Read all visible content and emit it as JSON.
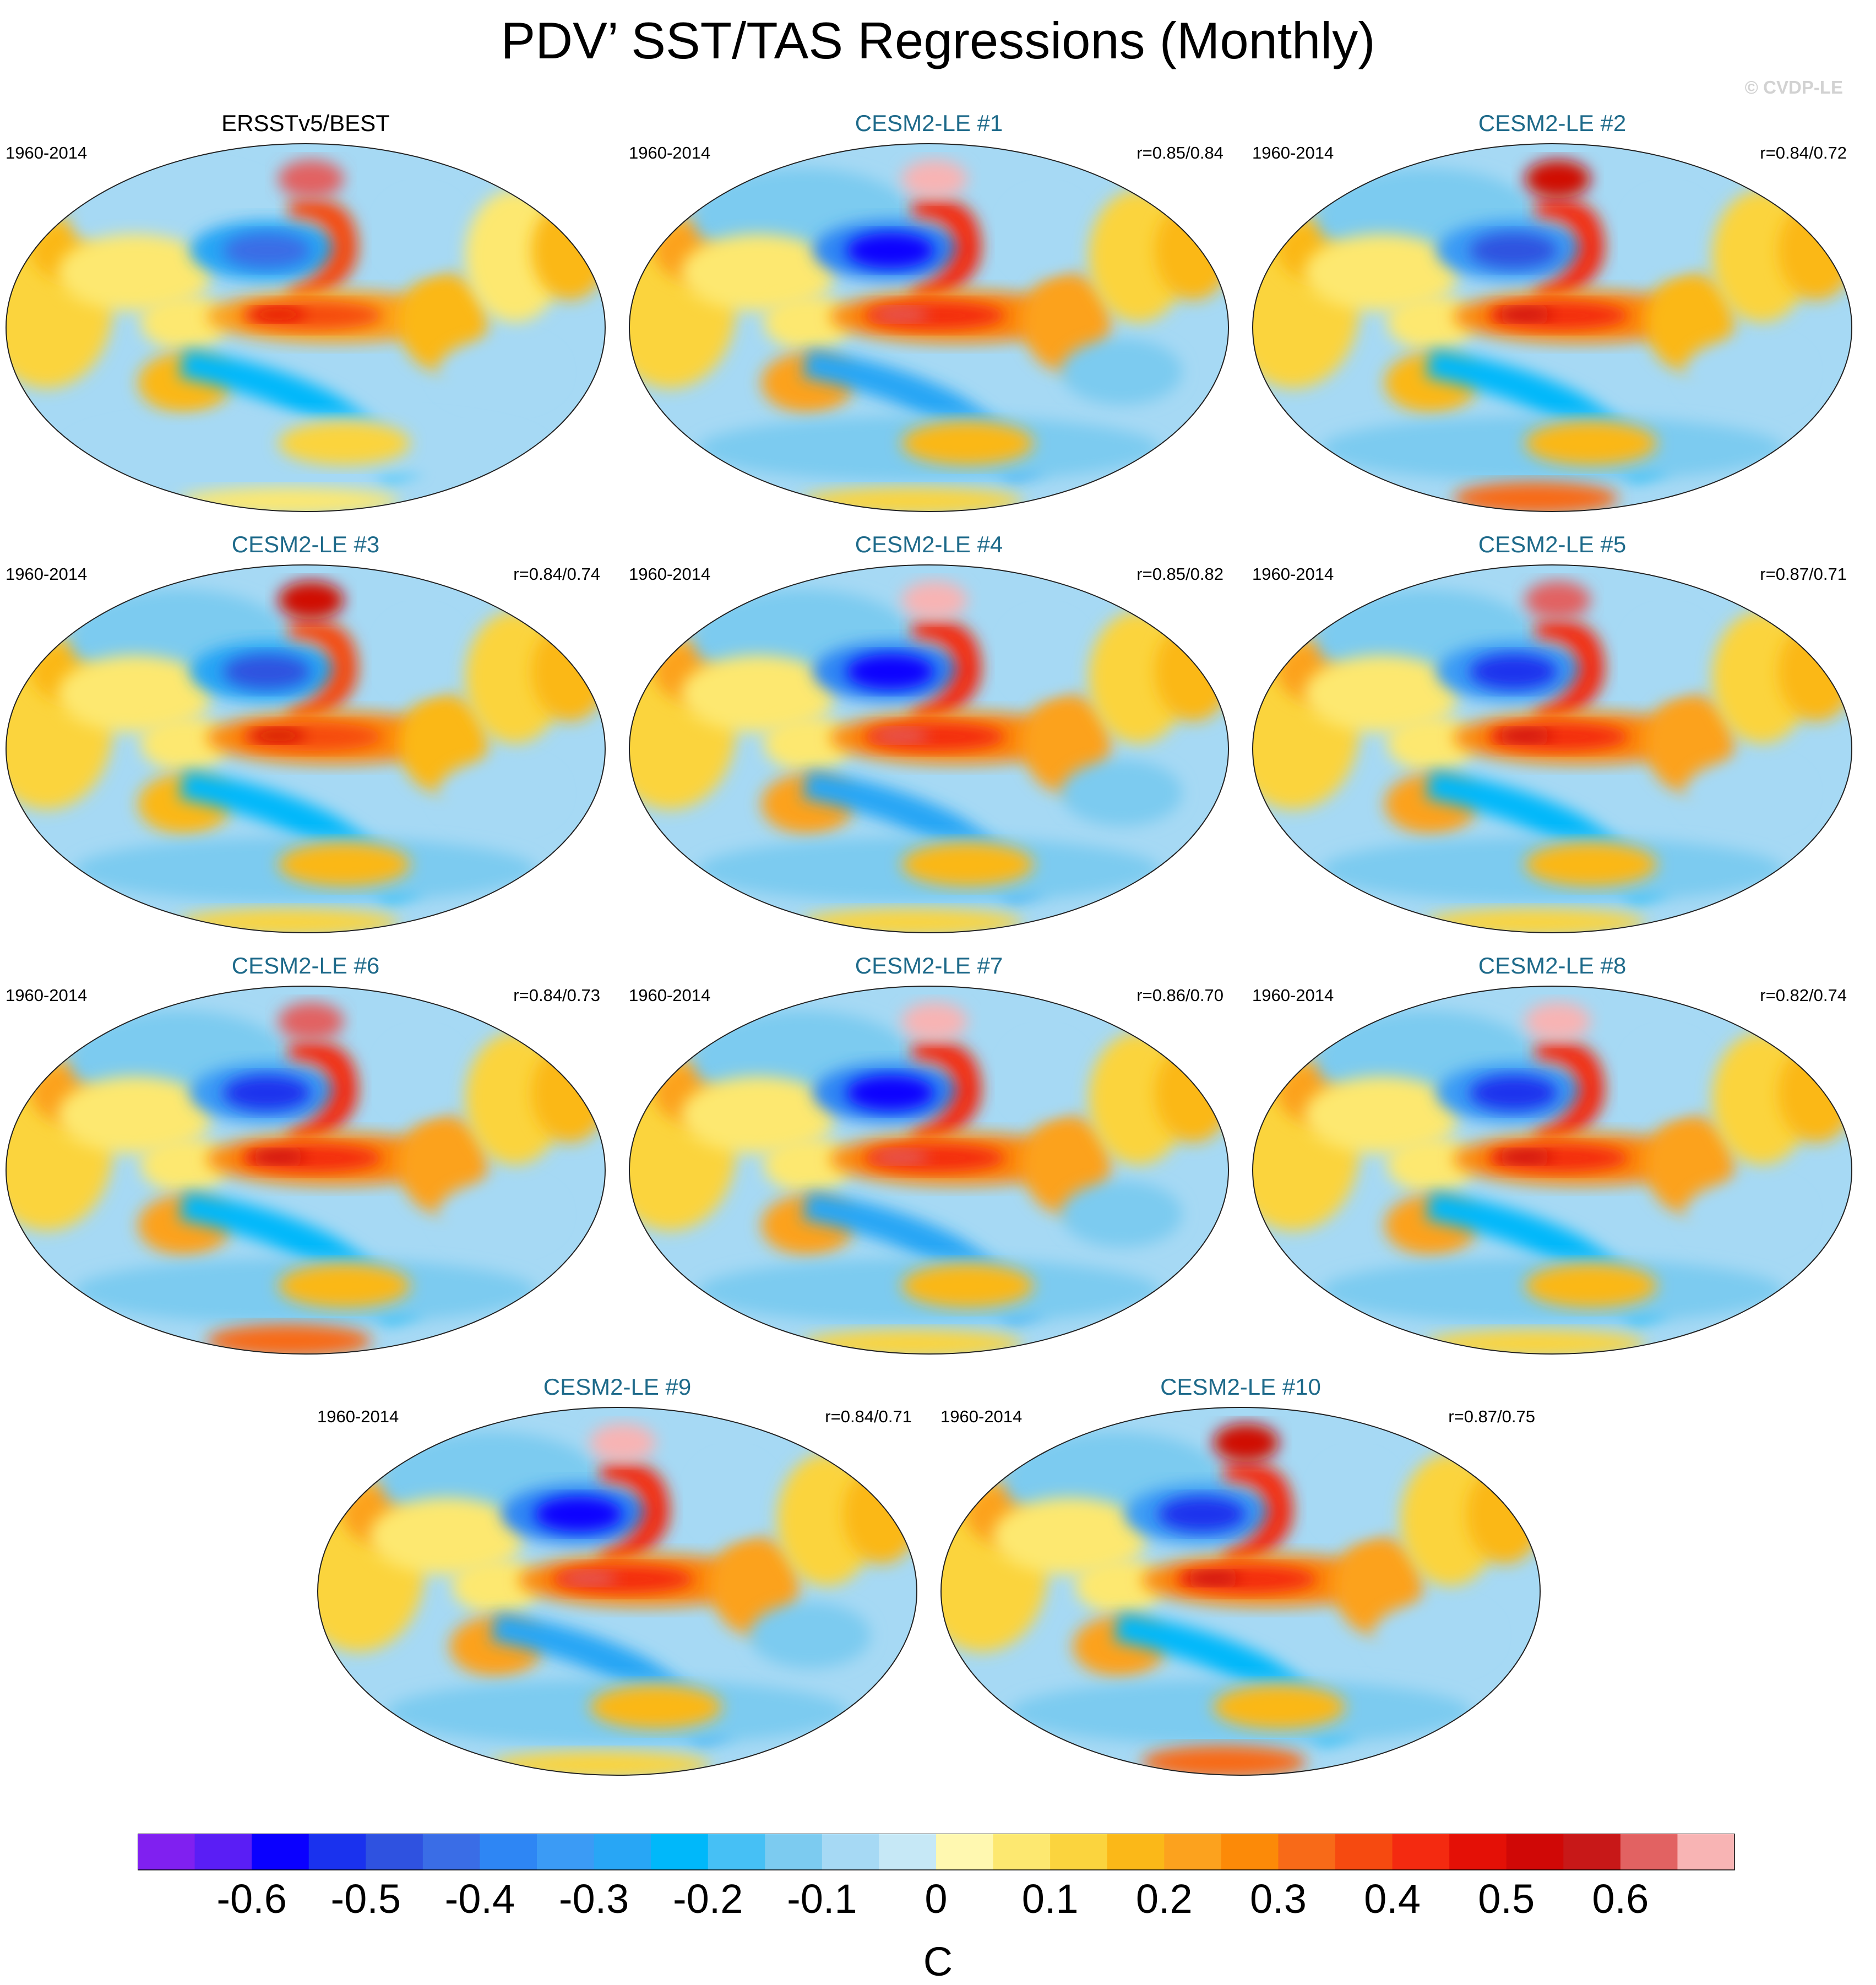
{
  "title": "PDV’ SST/TAS Regressions (Monthly)",
  "credit": "© CVDP-LE",
  "panels": [
    {
      "title": "ERSSTv5/BEST",
      "period": "1960-2014",
      "corr": "",
      "observed": true,
      "anomaly_strength": 0.8,
      "pink_ne_america": 0.45,
      "antarctic_warm": 0.0
    },
    {
      "title": "CESM2-LE #1",
      "period": "1960-2014",
      "corr": "r=0.85/0.84",
      "observed": false,
      "anomaly_strength": 1.0,
      "pink_ne_america": 0.5,
      "antarctic_warm": 0.0
    },
    {
      "title": "CESM2-LE #2",
      "period": "1960-2014",
      "corr": "r=0.84/0.72",
      "observed": false,
      "anomaly_strength": 0.9,
      "pink_ne_america": 0.4,
      "antarctic_warm": 0.7
    },
    {
      "title": "CESM2-LE #3",
      "period": "1960-2014",
      "corr": "r=0.84/0.74",
      "observed": false,
      "anomaly_strength": 0.85,
      "pink_ne_america": 0.4,
      "antarctic_warm": 0.0
    },
    {
      "title": "CESM2-LE #4",
      "period": "1960-2014",
      "corr": "r=0.85/0.82",
      "observed": false,
      "anomaly_strength": 1.0,
      "pink_ne_america": 0.55,
      "antarctic_warm": 0.0
    },
    {
      "title": "CESM2-LE #5",
      "period": "1960-2014",
      "corr": "r=0.87/0.71",
      "observed": false,
      "anomaly_strength": 0.95,
      "pink_ne_america": 0.45,
      "antarctic_warm": 0.0
    },
    {
      "title": "CESM2-LE #6",
      "period": "1960-2014",
      "corr": "r=0.84/0.73",
      "observed": false,
      "anomaly_strength": 0.95,
      "pink_ne_america": 0.45,
      "antarctic_warm": 0.65
    },
    {
      "title": "CESM2-LE #7",
      "period": "1960-2014",
      "corr": "r=0.86/0.70",
      "observed": false,
      "anomaly_strength": 1.0,
      "pink_ne_america": 0.55,
      "antarctic_warm": 0.0
    },
    {
      "title": "CESM2-LE #8",
      "period": "1960-2014",
      "corr": "r=0.82/0.74",
      "observed": false,
      "anomaly_strength": 0.95,
      "pink_ne_america": 0.5,
      "antarctic_warm": 0.0
    },
    {
      "title": "CESM2-LE #9",
      "period": "1960-2014",
      "corr": "r=0.84/0.71",
      "observed": false,
      "anomaly_strength": 1.0,
      "pink_ne_america": 0.55,
      "antarctic_warm": 0.0
    },
    {
      "title": "CESM2-LE #10",
      "period": "1960-2014",
      "corr": "r=0.87/0.75",
      "observed": false,
      "anomaly_strength": 0.95,
      "pink_ne_america": 0.4,
      "antarctic_warm": 0.7
    }
  ],
  "colorbar": {
    "unit": "C",
    "levels": [
      -0.65,
      -0.6,
      -0.55,
      -0.5,
      -0.45,
      -0.4,
      -0.35,
      -0.3,
      -0.25,
      -0.2,
      -0.15,
      -0.1,
      -0.05,
      0,
      0.05,
      0.1,
      0.15,
      0.2,
      0.25,
      0.3,
      0.35,
      0.4,
      0.45,
      0.5,
      0.55,
      0.6,
      0.65,
      0.7
    ],
    "colors": [
      "#8020f0",
      "#5a1ef5",
      "#0a00ff",
      "#1a32ee",
      "#2f52e0",
      "#3a6de6",
      "#2e86f4",
      "#3b9bf5",
      "#28a6f5",
      "#00b8fa",
      "#46c0f5",
      "#7ccbf0",
      "#a6d9f4",
      "#c6e8f6",
      "#fff8b0",
      "#fde870",
      "#fbd43e",
      "#fbb818",
      "#fca21e",
      "#fc8a08",
      "#f86a18",
      "#f64a10",
      "#f42a10",
      "#e41006",
      "#d00806",
      "#c81818",
      "#e26262",
      "#f8b4b4"
    ],
    "tick_values": [
      -0.6,
      -0.5,
      -0.4,
      -0.3,
      -0.2,
      -0.1,
      0,
      0.1,
      0.2,
      0.3,
      0.4,
      0.5,
      0.6
    ],
    "tick_labels": [
      "-0.6",
      "-0.5",
      "-0.4",
      "-0.3",
      "-0.2",
      "-0.1",
      "0",
      "0.1",
      "0.2",
      "0.3",
      "0.4",
      "0.5",
      "0.6"
    ]
  },
  "chart_data": {
    "type": "heatmap",
    "title": "PDV’ SST/TAS Regressions (Monthly)",
    "projection": "Robinson (global)",
    "unit": "C",
    "period": "1960-2014",
    "color_range": [
      -0.65,
      0.7
    ],
    "contour_interval": 0.05,
    "series": [
      {
        "name": "ERSSTv5/BEST",
        "pattern_correlation": null
      },
      {
        "name": "CESM2-LE #1",
        "pattern_correlation": "r=0.85/0.84"
      },
      {
        "name": "CESM2-LE #2",
        "pattern_correlation": "r=0.84/0.72"
      },
      {
        "name": "CESM2-LE #3",
        "pattern_correlation": "r=0.84/0.74"
      },
      {
        "name": "CESM2-LE #4",
        "pattern_correlation": "r=0.85/0.82"
      },
      {
        "name": "CESM2-LE #5",
        "pattern_correlation": "r=0.87/0.71"
      },
      {
        "name": "CESM2-LE #6",
        "pattern_correlation": "r=0.84/0.73"
      },
      {
        "name": "CESM2-LE #7",
        "pattern_correlation": "r=0.86/0.70"
      },
      {
        "name": "CESM2-LE #8",
        "pattern_correlation": "r=0.82/0.74"
      },
      {
        "name": "CESM2-LE #9",
        "pattern_correlation": "r=0.84/0.71"
      },
      {
        "name": "CESM2-LE #10",
        "pattern_correlation": "r=0.87/0.75"
      }
    ]
  }
}
